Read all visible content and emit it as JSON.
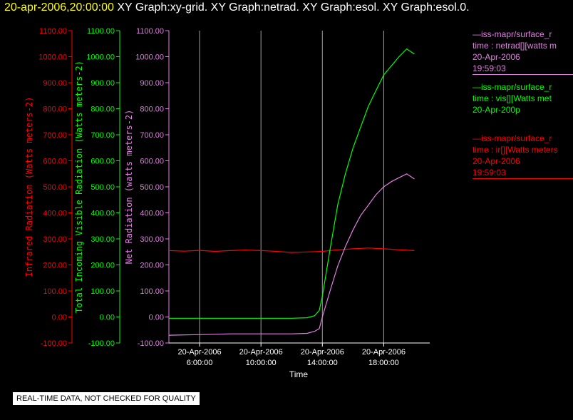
{
  "header": {
    "datetime": "20-apr-2006,20:00:00",
    "graphs": "XY Graph:xy-grid.  XY Graph:netrad.  XY Graph:esol.  XY Graph:esol.0."
  },
  "legend": [
    {
      "lines": [
        "—iss-mapr/surface_r",
        "time : netrad[][watts m",
        "20-Apr-2006",
        "19:59:03"
      ],
      "color": "#e080e0"
    },
    {
      "lines": [
        "—iss-mapr/surface_r",
        "time : vis[][Watts met",
        "20-Apr-200p"
      ],
      "color": "#00ff00"
    },
    {
      "lines": [
        "—iss-mapr/surface_r",
        "time : ir[][Watts meters",
        "20-Apr-2006",
        "19:59:03"
      ],
      "color": "#ff0000"
    }
  ],
  "notice": "REAL-TIME DATA, NOT CHECKED FOR QUALITY",
  "chart_data": {
    "type": "line",
    "xlabel": "Time",
    "x_unit": "hours",
    "xlim": [
      4.0,
      21.0
    ],
    "xticks": [
      {
        "value": 6,
        "label": [
          "20-Apr-2006",
          "6:00:00"
        ]
      },
      {
        "value": 10,
        "label": [
          "20-Apr-2006",
          "10:00:00"
        ]
      },
      {
        "value": 14,
        "label": [
          "20-Apr-2006",
          "14:00:00"
        ]
      },
      {
        "value": 18,
        "label": [
          "20-Apr-2006",
          "18:00:00"
        ]
      }
    ],
    "grid": "vertical lines at x ticks",
    "axes": [
      {
        "label": "Infrared Radiation (Watts meters-2)",
        "color": "#ff0000",
        "ylim": [
          -100,
          1100
        ],
        "ticks": [
          "-100.00",
          "0.00",
          "100.00",
          "200.00",
          "300.00",
          "400.00",
          "500.00",
          "600.00",
          "700.00",
          "800.00",
          "900.00",
          "1000.00",
          "1100.00"
        ]
      },
      {
        "label": "Total Incoming Visible Radiation (Watts meters-2)",
        "color": "#00ff00",
        "ylim": [
          -100,
          1100
        ],
        "ticks": [
          "-100.00",
          "0.00",
          "100.00",
          "200.00",
          "300.00",
          "400.00",
          "500.00",
          "600.00",
          "700.00",
          "800.00",
          "900.00",
          "1000.00",
          "1100.00"
        ]
      },
      {
        "label": "Net Radiation (watts meters-2)",
        "color": "#e080e0",
        "ylim": [
          -100,
          1100
        ],
        "ticks": [
          "-100.00",
          "0.00",
          "100.00",
          "200.00",
          "300.00",
          "400.00",
          "500.00",
          "600.00",
          "700.00",
          "800.00",
          "900.00",
          "1000.00",
          "1100.00"
        ]
      }
    ],
    "series": [
      {
        "color": "#ff0000",
        "x": [
          4.0,
          5.0,
          6.0,
          7.0,
          8.0,
          9.0,
          10.0,
          11.0,
          12.0,
          13.0,
          14.0,
          15.0,
          16.0,
          17.0,
          18.0,
          19.0,
          20.0
        ],
        "y": [
          255,
          253,
          256,
          252,
          255,
          257,
          255,
          252,
          248,
          250,
          252,
          258,
          262,
          265,
          262,
          258,
          255
        ]
      },
      {
        "color": "#00ff00",
        "x": [
          4.0,
          6.0,
          8.0,
          10.0,
          12.0,
          13.0,
          13.5,
          13.8,
          14.0,
          14.5,
          15.0,
          15.5,
          16.0,
          16.5,
          17.0,
          17.5,
          18.0,
          18.5,
          19.0,
          19.5,
          20.0
        ],
        "y": [
          -5,
          -5,
          -5,
          -5,
          -5,
          -3,
          5,
          25,
          80,
          260,
          430,
          550,
          650,
          730,
          810,
          870,
          930,
          965,
          1000,
          1030,
          1010
        ]
      },
      {
        "color": "#e080e0",
        "x": [
          4.0,
          6.0,
          8.0,
          10.0,
          12.0,
          13.0,
          13.5,
          13.8,
          14.0,
          14.5,
          15.0,
          15.5,
          16.0,
          16.5,
          17.0,
          17.5,
          18.0,
          18.5,
          19.0,
          19.5,
          20.0
        ],
        "y": [
          -70,
          -68,
          -65,
          -65,
          -65,
          -63,
          -55,
          -45,
          0,
          100,
          195,
          270,
          335,
          390,
          430,
          470,
          500,
          520,
          535,
          550,
          530
        ]
      }
    ]
  }
}
